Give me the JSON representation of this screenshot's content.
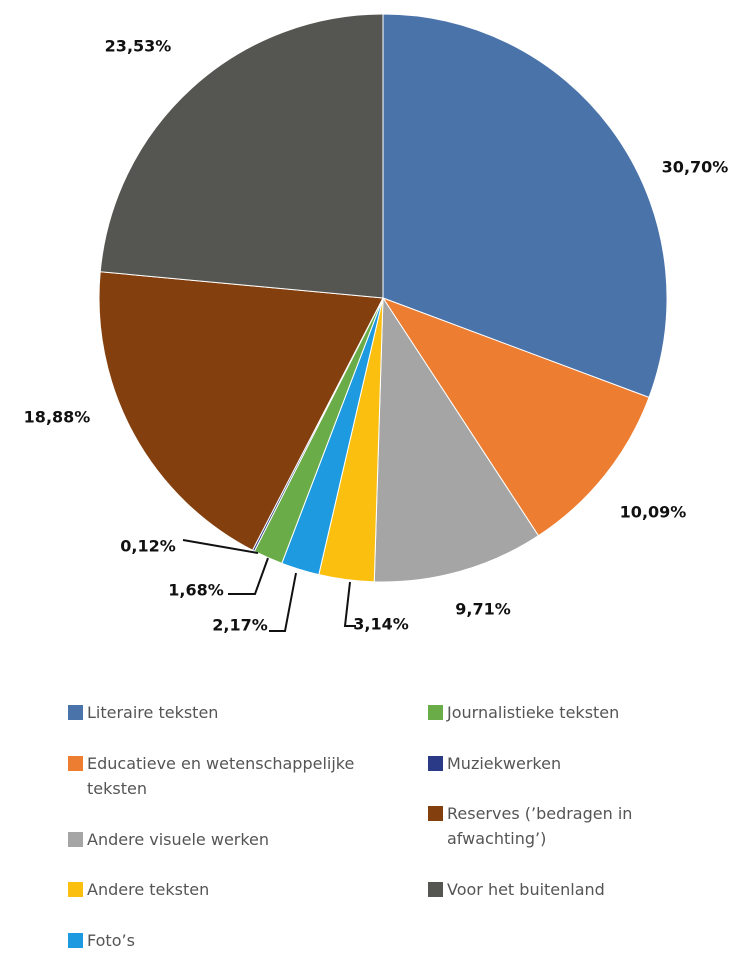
{
  "chart_data": {
    "type": "pie",
    "categories": [
      "Literaire teksten",
      "Educatieve en wetenschappelijke teksten",
      "Andere visuele werken",
      "Andere teksten",
      "Foto’s",
      "Journalistieke teksten",
      "Muziekwerken",
      "Reserves (’bedragen in afwachting’)",
      "Voor het buitenland"
    ],
    "values": [
      30.7,
      10.09,
      9.71,
      3.14,
      2.17,
      1.68,
      0.12,
      18.88,
      23.53
    ],
    "value_labels": [
      "30,70%",
      "10,09%",
      "9,71%",
      "3,14%",
      "2,17%",
      "1,68%",
      "0,12%",
      "18,88%",
      "23,53%"
    ],
    "colors": [
      "#4a73aa",
      "#ed7d31",
      "#a5a5a5",
      "#fbbf0f",
      "#1e9be0",
      "#6aad48",
      "#2b3a86",
      "#843f0e",
      "#555551"
    ]
  }
}
